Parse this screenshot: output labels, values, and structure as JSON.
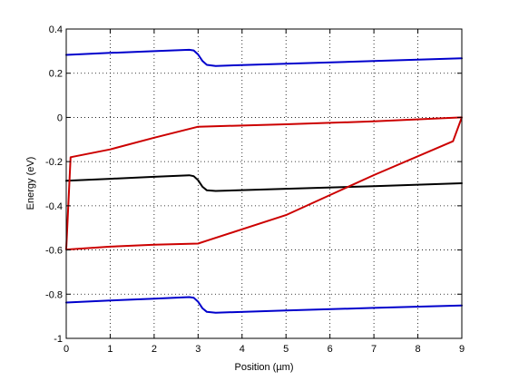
{
  "chart_data": {
    "type": "line",
    "xlabel": "Position (µm)",
    "ylabel": "Energy (eV)",
    "xlim": [
      0,
      9
    ],
    "ylim": [
      -1,
      0.4
    ],
    "xticks": [
      0,
      1,
      2,
      3,
      4,
      5,
      6,
      7,
      8,
      9
    ],
    "yticks": [
      -1,
      -0.8,
      -0.6,
      -0.4,
      -0.2,
      0,
      0.2,
      0.4
    ],
    "xtick_labels": [
      "0",
      "1",
      "2",
      "3",
      "4",
      "5",
      "6",
      "7",
      "8",
      "9"
    ],
    "ytick_labels": [
      "-1",
      "-0.8",
      "-0.6",
      "-0.4",
      "-0.2",
      "0",
      "0.2",
      "0.4"
    ],
    "grid": true,
    "series": [
      {
        "color": "#0000cc",
        "x": [
          0,
          1,
          2,
          2.8,
          2.9,
          3.0,
          3.1,
          3.2,
          3.4,
          5,
          7,
          9
        ],
        "y": [
          0.283,
          0.292,
          0.3,
          0.306,
          0.303,
          0.285,
          0.255,
          0.238,
          0.233,
          0.243,
          0.255,
          0.268
        ]
      },
      {
        "color": "#000000",
        "x": [
          0,
          1,
          2,
          2.8,
          2.9,
          3.0,
          3.1,
          3.2,
          3.4,
          5,
          7,
          9
        ],
        "y": [
          -0.287,
          -0.278,
          -0.269,
          -0.262,
          -0.266,
          -0.284,
          -0.314,
          -0.33,
          -0.333,
          -0.323,
          -0.311,
          -0.298
        ]
      },
      {
        "color": "#0000cc",
        "x": [
          0,
          1,
          2,
          2.8,
          2.9,
          3.0,
          3.1,
          3.2,
          3.4,
          5,
          7,
          9
        ],
        "y": [
          -0.838,
          -0.829,
          -0.82,
          -0.813,
          -0.816,
          -0.834,
          -0.864,
          -0.88,
          -0.884,
          -0.874,
          -0.862,
          -0.851
        ]
      },
      {
        "color": "#cc0000",
        "x": [
          0,
          0.1,
          1,
          2,
          3,
          5,
          7,
          9,
          8.8,
          7,
          5,
          3.2,
          3,
          2,
          1,
          0,
          0
        ],
        "y": [
          -0.596,
          -0.18,
          -0.145,
          -0.092,
          -0.042,
          -0.031,
          -0.018,
          0,
          -0.108,
          -0.261,
          -0.442,
          -0.558,
          -0.571,
          -0.576,
          -0.585,
          -0.598,
          -0.596
        ]
      }
    ]
  }
}
